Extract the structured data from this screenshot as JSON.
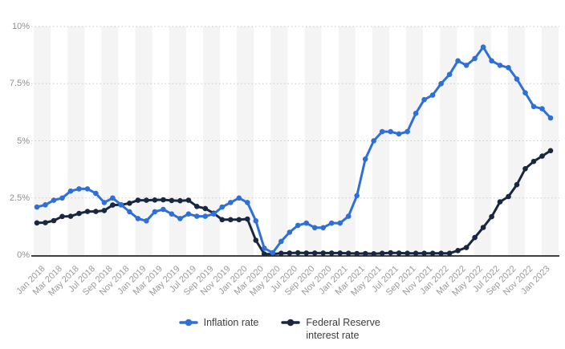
{
  "chart_data": {
    "type": "line",
    "title": "",
    "x": [
      "Jan 2018",
      "Feb 2018",
      "Mar 2018",
      "Apr 2018",
      "May 2018",
      "Jun 2018",
      "Jul 2018",
      "Aug 2018",
      "Sep 2018",
      "Oct 2018",
      "Nov 2018",
      "Dec 2018",
      "Jan 2019",
      "Feb 2019",
      "Mar 2019",
      "Apr 2019",
      "May 2019",
      "Jun 2019",
      "Jul 2019",
      "Aug 2019",
      "Sep 2019",
      "Oct 2019",
      "Nov 2019",
      "Dec 2019",
      "Jan 2020",
      "Feb 2020",
      "Mar 2020",
      "Apr 2020",
      "May 2020",
      "Jun 2020",
      "Jul 2020",
      "Aug 2020",
      "Sep 2020",
      "Oct 2020",
      "Nov 2020",
      "Dec 2020",
      "Jan 2021",
      "Feb 2021",
      "Mar 2021",
      "Apr 2021",
      "May 2021",
      "Jun 2021",
      "Jul 2021",
      "Aug 2021",
      "Sep 2021",
      "Oct 2021",
      "Nov 2021",
      "Dec 2021",
      "Jan 2022",
      "Feb 2022",
      "Mar 2022",
      "Apr 2022",
      "May 2022",
      "Jun 2022",
      "Jul 2022",
      "Aug 2022",
      "Sep 2022",
      "Oct 2022",
      "Nov 2022",
      "Dec 2022",
      "Jan 2023",
      "Feb 2023"
    ],
    "x_tick_labels": [
      "Jan 2018",
      "Mar 2018",
      "May 2018",
      "Jul 2018",
      "Sep 2018",
      "Nov 2018",
      "Jan 2019",
      "Mar 2019",
      "May 2019",
      "Jul 2019",
      "Sep 2019",
      "Nov 2019",
      "Jan 2020",
      "Mar 2020",
      "May 2020",
      "Jul 2020",
      "Sep 2020",
      "Nov 2020",
      "Jan 2021",
      "Mar 2021",
      "May 2021",
      "Jul 2021",
      "Sep 2021",
      "Nov 2021",
      "Jan 2022",
      "Mar 2022",
      "May 2022",
      "Jul 2022",
      "Sep 2022",
      "Nov 2022",
      "Jan 2023"
    ],
    "series": [
      {
        "name": "Inflation rate",
        "color": "#2e6fd8",
        "values": [
          2.1,
          2.2,
          2.4,
          2.5,
          2.8,
          2.9,
          2.9,
          2.7,
          2.3,
          2.5,
          2.2,
          1.9,
          1.6,
          1.5,
          1.9,
          2.0,
          1.8,
          1.6,
          1.8,
          1.7,
          1.7,
          1.8,
          2.1,
          2.3,
          2.5,
          2.3,
          1.5,
          0.3,
          0.1,
          0.6,
          1.0,
          1.3,
          1.4,
          1.2,
          1.2,
          1.4,
          1.4,
          1.7,
          2.6,
          4.2,
          5.0,
          5.4,
          5.4,
          5.3,
          5.4,
          6.2,
          6.8,
          7.0,
          7.5,
          7.9,
          8.5,
          8.3,
          8.6,
          9.1,
          8.5,
          8.3,
          8.2,
          7.7,
          7.1,
          6.5,
          6.4,
          6.0
        ]
      },
      {
        "name": "Federal Reserve interest rate",
        "color": "#192840",
        "values": [
          1.41,
          1.42,
          1.51,
          1.69,
          1.7,
          1.82,
          1.91,
          1.91,
          1.95,
          2.19,
          2.2,
          2.27,
          2.4,
          2.4,
          2.41,
          2.42,
          2.39,
          2.38,
          2.4,
          2.13,
          2.04,
          1.83,
          1.55,
          1.55,
          1.55,
          1.58,
          0.65,
          0.05,
          0.05,
          0.08,
          0.09,
          0.1,
          0.09,
          0.09,
          0.09,
          0.09,
          0.09,
          0.08,
          0.07,
          0.07,
          0.06,
          0.08,
          0.1,
          0.09,
          0.08,
          0.08,
          0.08,
          0.08,
          0.08,
          0.08,
          0.2,
          0.33,
          0.77,
          1.21,
          1.68,
          2.33,
          2.56,
          3.08,
          3.78,
          4.1,
          4.33,
          4.57
        ]
      }
    ],
    "ylim": [
      0,
      10
    ],
    "yticks": [
      0,
      2.5,
      5,
      7.5,
      10
    ],
    "ytick_labels": [
      "0%",
      "2.5%",
      "5%",
      "7.5%",
      "10%"
    ],
    "grid": "horizontal dotted",
    "legend_position": "bottom-center",
    "colors": {
      "stripe": "#f4f4f4",
      "grid": "#c9c9c9",
      "axis": "#000000",
      "tick_label": "#8f8f8f",
      "legend_text": "#3d3d3d"
    }
  },
  "legend": {
    "items": [
      {
        "label": "Inflation rate"
      },
      {
        "label": "Federal Reserve interest rate"
      }
    ]
  }
}
